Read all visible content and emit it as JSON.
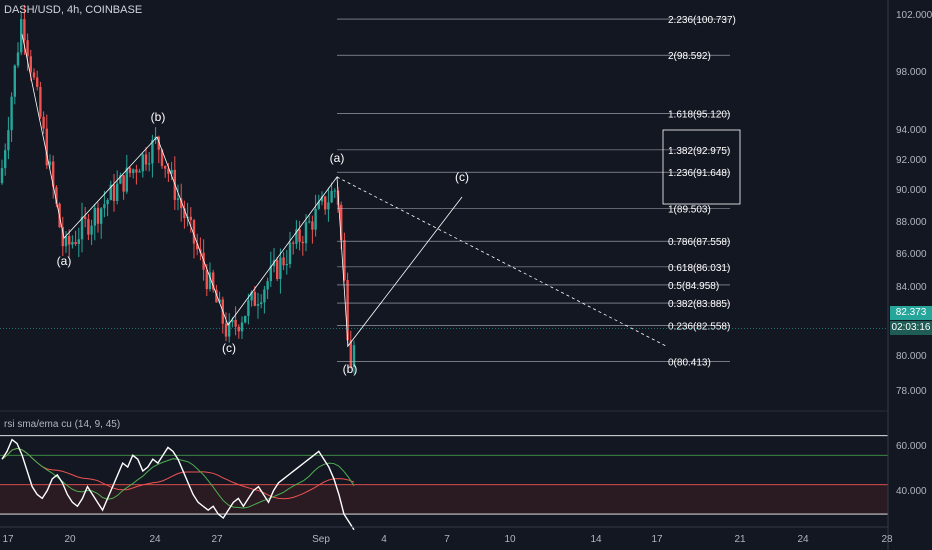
{
  "symbol": "DASH/USD, 4h, COINBASE",
  "rsi_label": "rsi sma/ema cu (14, 9, 45)",
  "last_price": "82.373",
  "countdown": "02:03:16",
  "colors": {
    "background": "#131722",
    "up": "#26a69a",
    "down": "#ef5350",
    "rsi_line": "#ffffff",
    "rsi_sma": "#4caf50",
    "rsi_ema": "#ef5350",
    "grid_line": "#b2b5be"
  },
  "chart_data": [
    {
      "type": "candlestick",
      "title": "DASH/USD, 4h, COINBASE",
      "y_axis": {
        "ticks": [
          "102.000",
          "98.000",
          "94.000",
          "92.000",
          "90.000",
          "88.000",
          "86.000",
          "84.000",
          "80.000",
          "78.000"
        ],
        "ylim": [
          76.8,
          103
        ]
      },
      "x_axis": {
        "ticks": [
          "17",
          "20",
          "24",
          "27",
          "Sep",
          "4",
          "7",
          "10",
          "14",
          "17",
          "21",
          "24",
          "28"
        ]
      },
      "fib_levels": [
        {
          "label": "2.236(100.737)",
          "value": 100.737
        },
        {
          "label": "2(98.592)",
          "value": 98.592
        },
        {
          "label": "1.618(95.120)",
          "value": 95.12
        },
        {
          "label": "1.382(92.975)",
          "value": 92.975
        },
        {
          "label": "1.236(91.648)",
          "value": 91.648
        },
        {
          "label": "1(89.503)",
          "value": 89.503
        },
        {
          "label": "0.786(87.558)",
          "value": 87.558
        },
        {
          "label": "0.618(86.031)",
          "value": 86.031
        },
        {
          "label": "0.5(84.958)",
          "value": 84.958
        },
        {
          "label": "0.382(83.885)",
          "value": 83.885
        },
        {
          "label": "0.236(82.558)",
          "value": 82.558
        },
        {
          "label": "0(80.413)",
          "value": 80.413
        }
      ],
      "wave_labels": [
        "(a)",
        "(b)",
        "(c)",
        "(a)",
        "(b)",
        "(c)"
      ],
      "last_price": 82.373
    },
    {
      "type": "line",
      "title": "rsi sma/ema cu (14, 9, 45)",
      "y_axis": {
        "ticks": [
          "60.000",
          "40.000"
        ],
        "levels": [
          70,
          60,
          45,
          30
        ]
      },
      "series": [
        {
          "name": "rsi",
          "values": [
            58,
            62,
            68,
            66,
            60,
            52,
            44,
            40,
            38,
            42,
            48,
            50,
            46,
            40,
            36,
            34,
            38,
            44,
            40,
            36,
            32,
            38,
            44,
            50,
            56,
            54,
            60,
            58,
            52,
            54,
            58,
            56,
            60,
            64,
            62,
            58,
            52,
            46,
            40,
            36,
            34,
            32,
            34,
            30,
            28,
            32,
            36,
            38,
            34,
            38,
            42,
            44,
            40,
            36,
            42,
            46,
            48,
            50,
            52,
            54,
            56,
            58,
            60,
            62,
            58,
            54,
            48,
            40,
            30,
            26,
            22
          ]
        }
      ]
    }
  ]
}
